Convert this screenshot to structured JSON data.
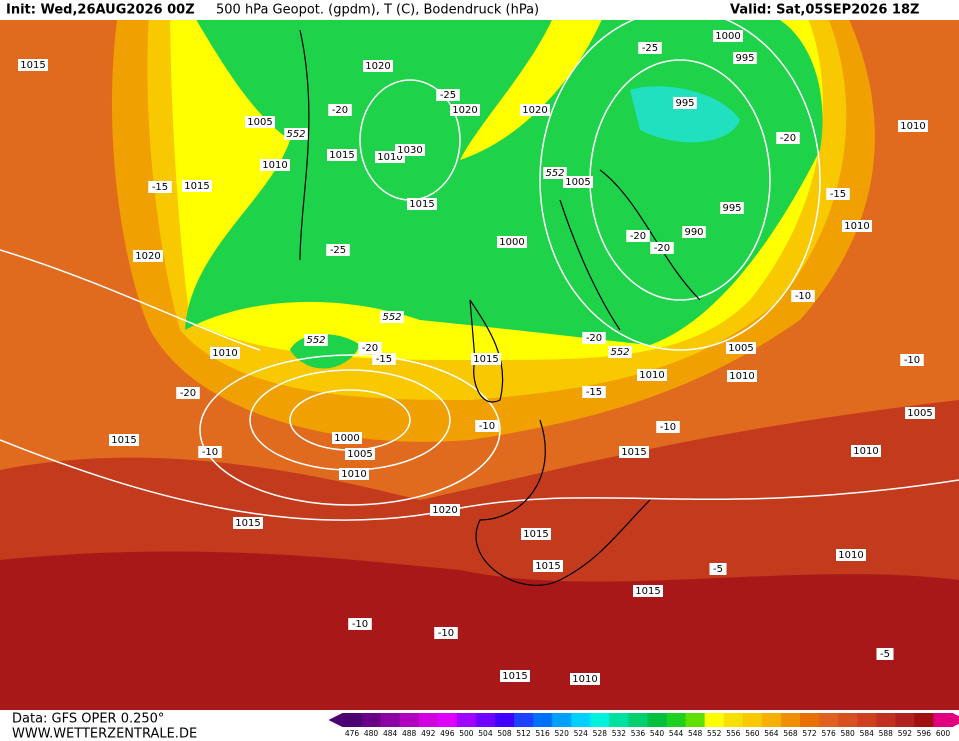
{
  "header": {
    "init": "Init: Wed,26AUG2026 00Z",
    "title": "500 hPa Geopot. (gpdm), T (C), Bodendruck (hPa)",
    "valid": "Valid: Sat,05SEP2026 18Z"
  },
  "footer": {
    "data": "Data: GFS OPER 0.250°",
    "site": "WWW.WETTERZENTRALE.DE"
  },
  "colorbar": {
    "values": [
      476,
      480,
      484,
      488,
      492,
      496,
      500,
      504,
      508,
      512,
      516,
      520,
      524,
      528,
      532,
      536,
      540,
      544,
      548,
      552,
      556,
      560,
      564,
      568,
      572,
      576,
      580,
      584,
      588,
      592,
      596,
      600
    ],
    "colors": [
      "#4b0070",
      "#6a0088",
      "#8a00a0",
      "#b000c0",
      "#d000e0",
      "#e000ff",
      "#a000ff",
      "#7000ff",
      "#4000ff",
      "#2040ff",
      "#0070ff",
      "#00a0ff",
      "#00d0ff",
      "#00f0e0",
      "#00e0a0",
      "#00d070",
      "#00c040",
      "#20d020",
      "#60e000",
      "#ffff00",
      "#f8e000",
      "#f8c800",
      "#f8b000",
      "#f09000",
      "#e87000",
      "#e06020",
      "#d85020",
      "#d04020",
      "#c03020",
      "#b02020",
      "#a01010",
      "#e00080"
    ]
  },
  "map": {
    "labels": [
      "1015",
      "1005",
      "1010",
      "1020",
      "1015",
      "1010",
      "1030",
      "-15",
      "1015",
      "1020",
      "-25",
      "1015",
      "1020",
      "1020",
      "-25",
      "-20",
      "552",
      "552",
      "1005",
      "1000",
      "995",
      "1000",
      "995",
      "-25",
      "-20",
      "995",
      "990",
      "-20",
      "-20",
      "-15",
      "1010",
      "1010",
      "-10",
      "1010",
      "552",
      "552",
      "-20",
      "-15",
      "1015",
      "-20",
      "1015",
      "-10",
      "1000",
      "1005",
      "1010",
      "-10",
      "-20",
      "552",
      "1010",
      "1005",
      "1010",
      "-10",
      "1005",
      "-15",
      "-10",
      "1015",
      "1010",
      "1015",
      "1020",
      "1015",
      "1015",
      "1015",
      "1010",
      "-5",
      "-10",
      "-10",
      "-5",
      "1015",
      "1010"
    ]
  }
}
